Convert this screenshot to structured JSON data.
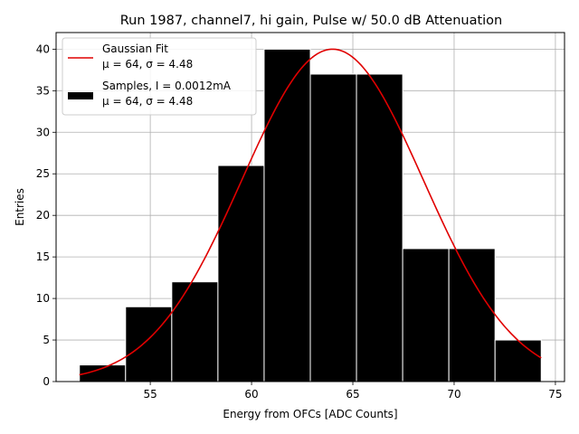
{
  "chart_data": {
    "type": "histogram",
    "title": "Run 1987, channel7, hi gain, Pulse w/ 50.0 dB Attenuation",
    "xlabel": "Energy from OFCs [ADC Counts]",
    "ylabel": "Entries",
    "xlim": [
      50.35,
      75.45
    ],
    "ylim": [
      0,
      42
    ],
    "xticks": [
      55,
      60,
      65,
      70,
      75
    ],
    "yticks": [
      0,
      5,
      10,
      15,
      20,
      25,
      30,
      35,
      40
    ],
    "grid": true,
    "bins": [
      {
        "x0": 51.5,
        "x1": 53.78,
        "count": 2
      },
      {
        "x0": 53.78,
        "x1": 56.06,
        "count": 9
      },
      {
        "x0": 56.06,
        "x1": 58.34,
        "count": 12
      },
      {
        "x0": 58.34,
        "x1": 60.62,
        "count": 26
      },
      {
        "x0": 60.62,
        "x1": 62.9,
        "count": 40
      },
      {
        "x0": 62.9,
        "x1": 65.18,
        "count": 37
      },
      {
        "x0": 65.18,
        "x1": 67.46,
        "count": 37
      },
      {
        "x0": 67.46,
        "x1": 69.74,
        "count": 16
      },
      {
        "x0": 69.74,
        "x1": 72.02,
        "count": 16
      },
      {
        "x0": 72.02,
        "x1": 74.3,
        "count": 5
      }
    ],
    "bar_color": "#000000",
    "bar_edge_color": "#ffffff",
    "fit": {
      "mu": 64,
      "sigma": 4.48,
      "amplitude": 40,
      "x_range": [
        51.5,
        74.3
      ],
      "color": "#e00000"
    },
    "legend": {
      "position": "upper-left",
      "entries": [
        {
          "kind": "line",
          "label": "Gaussian Fit",
          "sublabel": "μ = 64, σ = 4.48"
        },
        {
          "kind": "patch",
          "label": "Samples, I = 0.0012mA",
          "sublabel": "μ = 64, σ = 4.48"
        }
      ]
    }
  }
}
